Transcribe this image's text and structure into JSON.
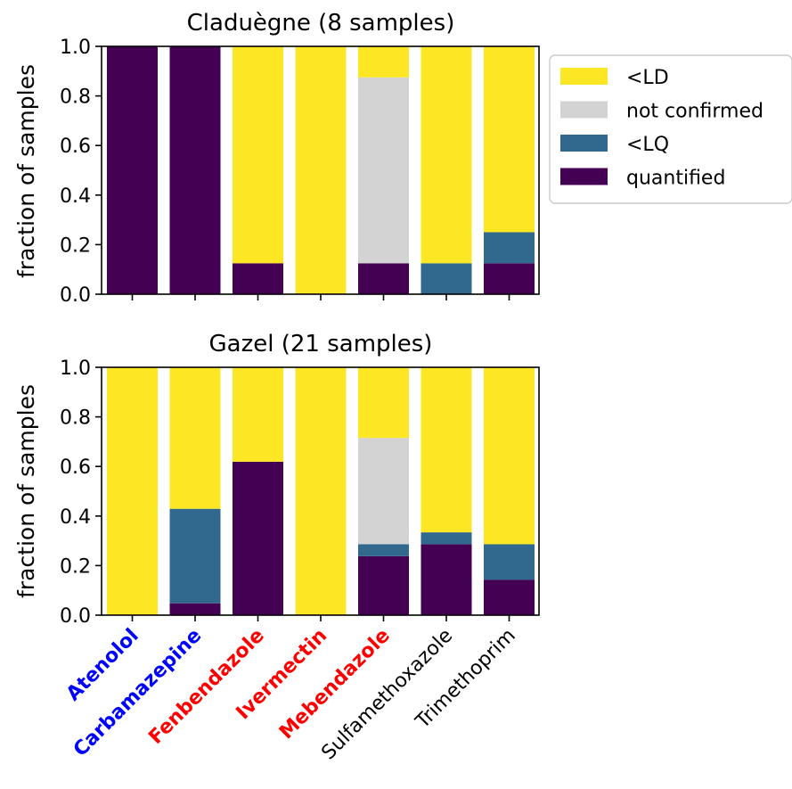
{
  "chart_data": [
    {
      "type": "bar",
      "stacked": true,
      "title": "Claduègne (8 samples)",
      "ylabel": "fraction of samples",
      "ylim": [
        0,
        1.0
      ],
      "yticks": [
        "0.0",
        "0.2",
        "0.4",
        "0.6",
        "0.8",
        "1.0"
      ],
      "categories": [
        "Atenolol",
        "Carbamazepine",
        "Fenbendazole",
        "Ivermectin",
        "Mebendazole",
        "Sulfamethoxazole",
        "Trimethoprim"
      ],
      "series": [
        {
          "name": "quantified",
          "values": [
            1.0,
            1.0,
            0.125,
            0.0,
            0.125,
            0.0,
            0.125
          ]
        },
        {
          "name": "<LQ",
          "values": [
            0.0,
            0.0,
            0.0,
            0.0,
            0.0,
            0.125,
            0.125
          ]
        },
        {
          "name": "not confirmed",
          "values": [
            0.0,
            0.0,
            0.0,
            0.0,
            0.75,
            0.0,
            0.0
          ]
        },
        {
          "name": "<LD",
          "values": [
            0.0,
            0.0,
            0.875,
            1.0,
            0.125,
            0.875,
            0.75
          ]
        }
      ]
    },
    {
      "type": "bar",
      "stacked": true,
      "title": "Gazel (21 samples)",
      "ylabel": "fraction of samples",
      "ylim": [
        0,
        1.0
      ],
      "yticks": [
        "0.0",
        "0.2",
        "0.4",
        "0.6",
        "0.8",
        "1.0"
      ],
      "categories": [
        "Atenolol",
        "Carbamazepine",
        "Fenbendazole",
        "Ivermectin",
        "Mebendazole",
        "Sulfamethoxazole",
        "Trimethoprim"
      ],
      "series": [
        {
          "name": "quantified",
          "values": [
            0.0,
            0.048,
            0.619,
            0.0,
            0.238,
            0.286,
            0.143
          ]
        },
        {
          "name": "<LQ",
          "values": [
            0.0,
            0.381,
            0.0,
            0.0,
            0.048,
            0.048,
            0.143
          ]
        },
        {
          "name": "not confirmed",
          "values": [
            0.0,
            0.0,
            0.0,
            0.0,
            0.429,
            0.0,
            0.0
          ]
        },
        {
          "name": "<LD",
          "values": [
            1.0,
            0.571,
            0.381,
            1.0,
            0.285,
            0.666,
            0.714
          ]
        }
      ]
    }
  ],
  "legend": {
    "placement": "right of top panel",
    "items": [
      {
        "label": "<LD",
        "color": "#fde725"
      },
      {
        "label": "not confirmed",
        "color": "#d3d3d3"
      },
      {
        "label": "<LQ",
        "color": "#31688e"
      },
      {
        "label": "quantified",
        "color": "#440154"
      }
    ]
  },
  "series_colors": {
    "quantified": "#440154",
    "<LQ": "#31688e",
    "not confirmed": "#d3d3d3",
    "<LD": "#fde725"
  },
  "category_label_colors": [
    "#0000ff",
    "#0000ff",
    "#ff0000",
    "#ff0000",
    "#ff0000",
    "#000000",
    "#000000"
  ],
  "category_label_bold": [
    true,
    true,
    true,
    true,
    true,
    false,
    false
  ]
}
